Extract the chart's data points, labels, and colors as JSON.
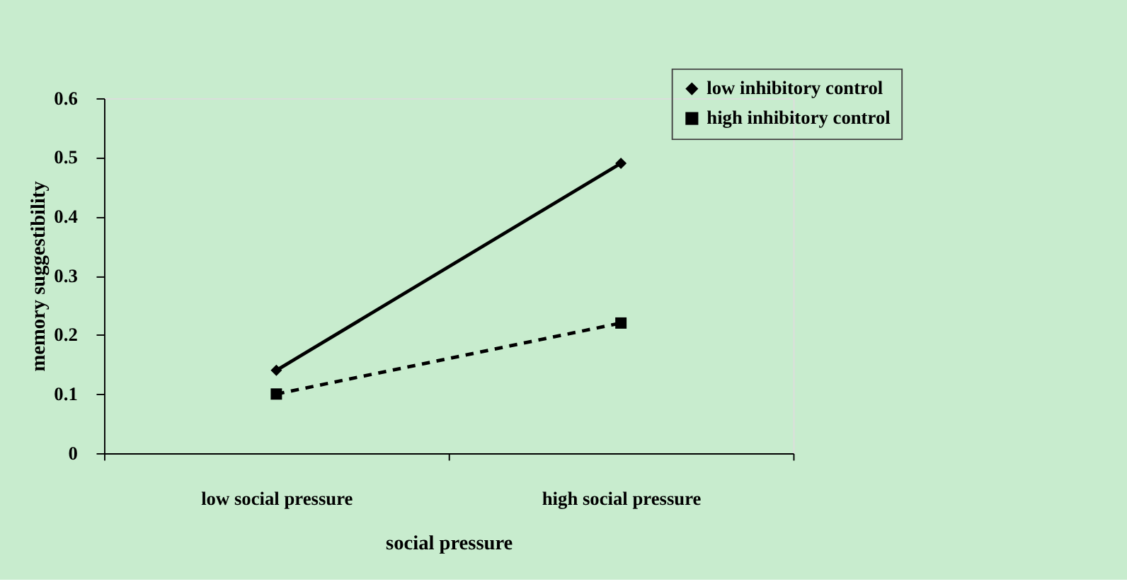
{
  "chart_data": {
    "type": "line",
    "xlabel": "social pressure",
    "ylabel": "memory suggestibility",
    "categories": [
      "low social pressure",
      "high social pressure"
    ],
    "series": [
      {
        "name": "low inhibitory control",
        "color": "#000000",
        "values": [
          0.14,
          0.49
        ],
        "marker": "diamond",
        "line_style": "solid"
      },
      {
        "name": "high inhibitory control",
        "color": "#000000",
        "values": [
          0.1,
          0.22
        ],
        "marker": "square",
        "line_style": "dashed"
      }
    ],
    "ylim": [
      0,
      0.6
    ],
    "yticks": [
      0,
      0.1,
      0.2,
      0.3,
      0.4,
      0.5,
      0.6
    ],
    "grid": false,
    "legend": "top right"
  }
}
